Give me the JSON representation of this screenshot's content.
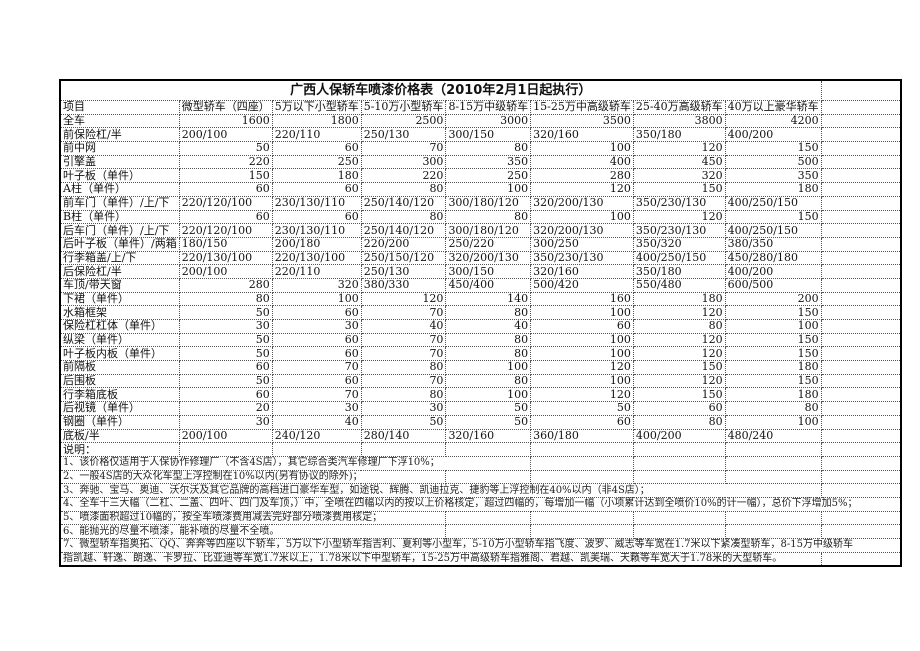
{
  "title": "广西人保轿车喷漆价格表（2010年2月1日起执行）",
  "header": [
    "项目",
    "微型轿车（四座）",
    "5万以下小型轿车",
    "5-10万小型轿车",
    "8-15万中级轿车",
    "15-25万中高级轿车",
    "25-40万高级轿车",
    "40万以上豪华轿车"
  ],
  "rows": [
    [
      "全车",
      "1600",
      "1800",
      "2500",
      "3000",
      "3500",
      "3800",
      "4200"
    ],
    [
      "前保险杠/半",
      "200/100",
      "220/110",
      "250/130",
      "300/150",
      "320/160",
      "350/180",
      "400/200"
    ],
    [
      "前中网",
      "50",
      "60",
      "70",
      "80",
      "100",
      "120",
      "150"
    ],
    [
      "引擎盖",
      "220",
      "250",
      "300",
      "350",
      "400",
      "450",
      "500"
    ],
    [
      "叶子板（单件）",
      "150",
      "180",
      "220",
      "250",
      "280",
      "320",
      "350"
    ],
    [
      "A柱（单件）",
      "60",
      "60",
      "80",
      "100",
      "120",
      "150",
      "180"
    ],
    [
      "前车门（单件）/上/下",
      "220/120/100",
      "230/130/110",
      "250/140/120",
      "300/180/120",
      "320/200/130",
      "350/230/130",
      "400/250/150"
    ],
    [
      "B柱（单件）",
      "60",
      "60",
      "80",
      "80",
      "100",
      "120",
      "150"
    ],
    [
      "后车门（单件）/上/下",
      "220/120/100",
      "230/130/110",
      "250/140/120",
      "300/180/120",
      "320/200/130",
      "350/230/130",
      "400/250/150"
    ],
    [
      "后叶子板（单件）/两箱",
      "180/150",
      "200/180",
      "220/200",
      "250/220",
      "300/250",
      "350/320",
      "380/350"
    ],
    [
      "行李箱盖/上/下",
      "220/130/100",
      "220/130/100",
      "250/150/120",
      "320/200/130",
      "350/230/130",
      "400/250/150",
      "450/280/180"
    ],
    [
      "后保险杠/半",
      "200/100",
      "220/110",
      "250/130",
      "300/150",
      "320/160",
      "350/180",
      "400/200"
    ],
    [
      "车顶/带天窗",
      "280",
      "320",
      "380/330",
      "450/400",
      "500/420",
      "550/480",
      "600/500"
    ],
    [
      "下裙（单件）",
      "80",
      "100",
      "120",
      "140",
      "160",
      "180",
      "200"
    ],
    [
      "水箱框架",
      "50",
      "60",
      "70",
      "80",
      "100",
      "120",
      "150"
    ],
    [
      "保险杠杠体（单件）",
      "30",
      "30",
      "40",
      "40",
      "60",
      "80",
      "100"
    ],
    [
      "纵梁（单件）",
      "50",
      "60",
      "70",
      "80",
      "100",
      "120",
      "150"
    ],
    [
      "叶子板内板（单件）",
      "50",
      "60",
      "70",
      "80",
      "100",
      "120",
      "150"
    ],
    [
      "前隔板",
      "60",
      "70",
      "80",
      "100",
      "120",
      "150",
      "180"
    ],
    [
      "后围板",
      "50",
      "60",
      "70",
      "80",
      "100",
      "120",
      "150"
    ],
    [
      "行李箱底板",
      "60",
      "70",
      "80",
      "100",
      "120",
      "150",
      "180"
    ],
    [
      "后视镜（单件）",
      "20",
      "30",
      "30",
      "50",
      "50",
      "60",
      "80"
    ],
    [
      "钢圈（单件）",
      "30",
      "40",
      "50",
      "50",
      "60",
      "80",
      "100"
    ],
    [
      "底板/半",
      "200/100",
      "240/120",
      "280/140",
      "320/160",
      "360/180",
      "400/200",
      "480/240"
    ]
  ],
  "notes_label": "说明：",
  "notes": [
    "1、该价格仅适用于人保协作修理厂（不含4S店），其它综合类汽车修理厂下浮10%；",
    "2、一般4S店的大众化车型上浮控制在10%以内(另有协议的除外)；",
    "3、奔驰、宝马、奥迪、沃尔沃及其它品牌的高档进口豪华车型，如途锐、辉腾、凯迪拉克、捷豹等上浮控制在40%以内（非4S店）；",
    "4、全车十三大幅（二杠、二盖、四叶、四门及车顶，）中，全喷在四幅以内的按以上价格核定，超过四幅的，每增加一幅（小项累计达到全喷价10%的计一幅），总价下浮增加5%；",
    "5、喷漆面积超过10幅的，按全车喷漆费用减去完好部分喷漆费用核定；",
    "6、能抛光的尽量不喷漆，能补喷的尽量不全喷。",
    "7、微型轿车指奥拓、QQ、奔奔等四座以下轿车，5万以下小型轿车指吉利、夏利等小型车，5-10万小型轿车指飞度、波罗、威志等车宽在1.7米以下紧凑型轿车，8-15万中级轿车",
    "指凯越、轩逸、朗逸、卡罗拉、比亚迪等车宽1.7米以上，1.78米以下中型轿车，15-25万中高级轿车指雅阁、君越、凯美瑞、天籁等车宽大于1.78米的大型轿车。"
  ]
}
